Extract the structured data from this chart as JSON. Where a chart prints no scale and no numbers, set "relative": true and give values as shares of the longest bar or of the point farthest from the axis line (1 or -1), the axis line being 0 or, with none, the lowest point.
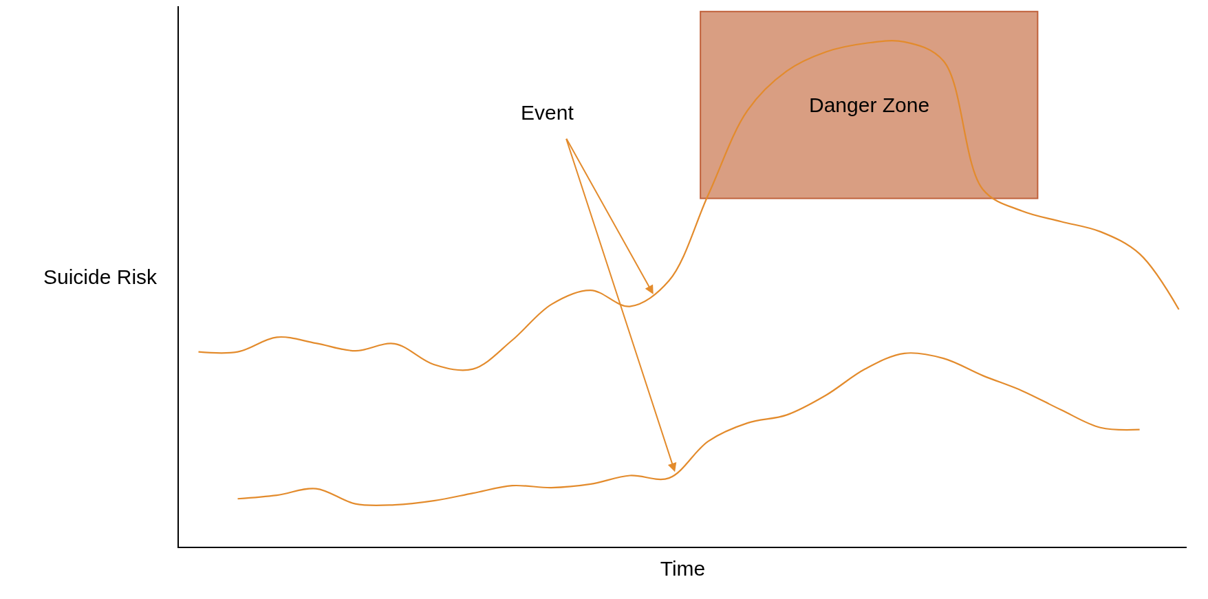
{
  "chart_data": {
    "type": "line",
    "relative": true,
    "xlabel": "Time",
    "ylabel": "Suicide Risk",
    "categories": [
      null,
      null,
      null,
      null,
      null,
      null,
      null,
      null,
      null,
      null,
      null,
      null,
      null,
      null,
      null,
      null,
      null,
      null,
      null,
      null,
      null,
      null,
      null,
      null,
      null,
      null
    ],
    "series": [
      {
        "color": "#e38b2c",
        "values": [
          0.386,
          0.386,
          0.415,
          0.403,
          0.388,
          0.402,
          0.361,
          0.352,
          0.409,
          0.48,
          0.508,
          0.476,
          0.527,
          0.697,
          0.864,
          0.942,
          0.98,
          0.997,
          1,
          0.962,
          0.708,
          0.665,
          0.644,
          0.624,
          0.58,
          0.47
        ]
      },
      {
        "color": "#e38b2c",
        "values": [
          null,
          0.095,
          0.102,
          0.115,
          0.085,
          0.083,
          0.091,
          0.106,
          0.121,
          0.117,
          0.124,
          0.141,
          0.136,
          0.209,
          0.245,
          0.261,
          0.3,
          0.352,
          0.383,
          0.373,
          0.339,
          0.309,
          0.271,
          0.236,
          0.232,
          null
        ]
      }
    ],
    "bands": [
      {
        "axis": "y",
        "from": 0.69,
        "to": 1.06,
        "label": "Danger Zone",
        "color": "#d99e82"
      }
    ],
    "annotations": [
      "Event"
    ],
    "tick_labels": false,
    "marker": "none",
    "line_style": "solid"
  }
}
